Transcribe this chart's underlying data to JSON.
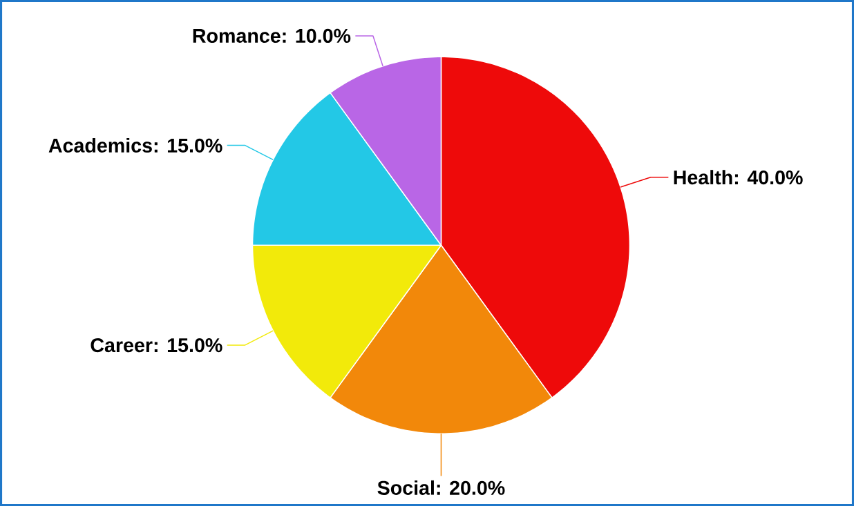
{
  "chart_data": {
    "type": "pie",
    "categories": [
      "Health",
      "Social",
      "Career",
      "Academics",
      "Romance"
    ],
    "values": [
      40,
      20,
      15,
      15,
      10
    ],
    "colors": [
      "#ee0a0a",
      "#f2880a",
      "#f2ea0a",
      "#23c8e6",
      "#b966e6"
    ],
    "value_labels": [
      ": 40.0%",
      ": 20.0%",
      ": 15.0%",
      ": 15.0%",
      ": 10.0%"
    ]
  }
}
